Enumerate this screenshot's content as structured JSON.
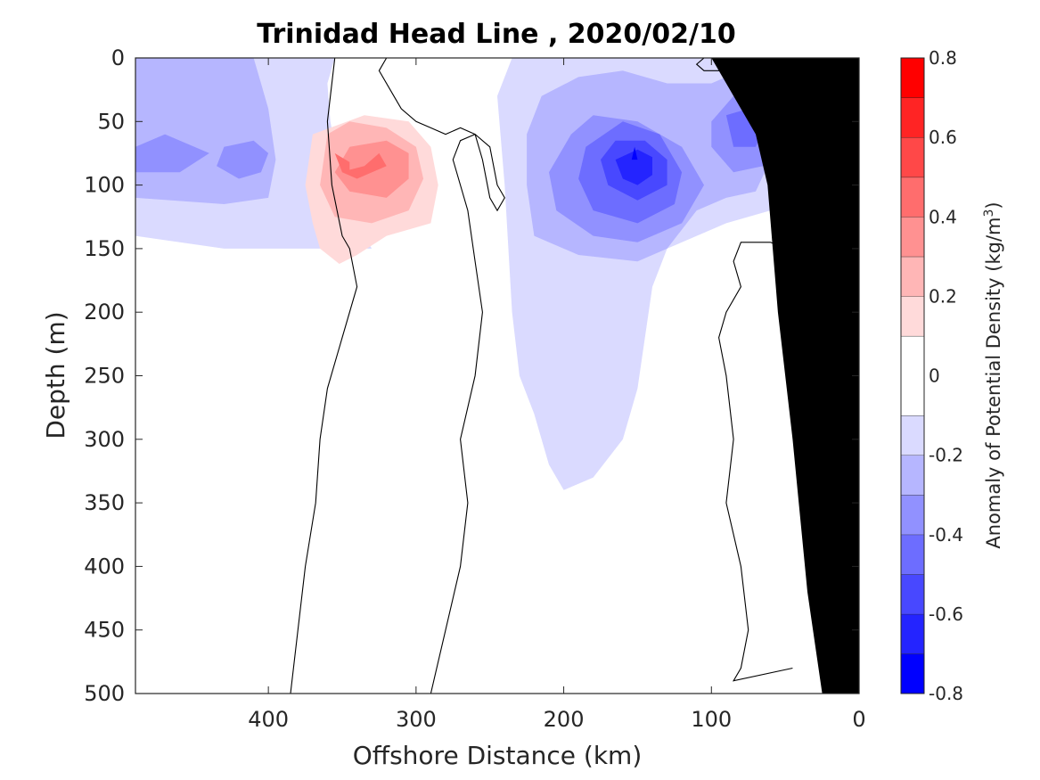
{
  "chart_data": {
    "type": "heatmap",
    "title": "Trinidad Head Line , 2020/02/10",
    "xlabel": "Offshore Distance (km)",
    "ylabel": "Depth (m)",
    "xlim": [
      490,
      0
    ],
    "ylim": [
      0,
      500
    ],
    "x_reversed": true,
    "y_reversed": true,
    "x_ticks": [
      400,
      300,
      200,
      100,
      0
    ],
    "y_ticks": [
      0,
      50,
      100,
      150,
      200,
      250,
      300,
      350,
      400,
      450,
      500
    ],
    "colorbar": {
      "label_pre": "Anomaly of Potential Density (kg/m",
      "label_sup": "3",
      "label_post": ")",
      "range": [
        -0.8,
        0.8
      ],
      "ticks": [
        0.8,
        0.6,
        0.4,
        0.2,
        0,
        -0.2,
        -0.4,
        -0.6,
        -0.8
      ],
      "levels": [
        -0.8,
        -0.7,
        -0.6,
        -0.5,
        -0.4,
        -0.3,
        -0.2,
        -0.1,
        0.1,
        0.2,
        0.3,
        0.4,
        0.5,
        0.6,
        0.7,
        0.8
      ],
      "colors": [
        "#0000ff",
        "#2424ff",
        "#4848ff",
        "#6d6dff",
        "#9191ff",
        "#b6b6ff",
        "#dadaff",
        "#ffffff",
        "#ffdada",
        "#ffb6b6",
        "#ff9191",
        "#ff6d6d",
        "#ff4848",
        "#ff2424",
        "#ff0000"
      ]
    },
    "bathymetry_color": "#000000",
    "regions": [
      {
        "sign": "negative",
        "level": -0.1,
        "points": [
          [
            490,
            0
          ],
          [
            355,
            0
          ],
          [
            360,
            20
          ],
          [
            358,
            50
          ],
          [
            350,
            100
          ],
          [
            340,
            130
          ],
          [
            330,
            150
          ],
          [
            430,
            150
          ],
          [
            490,
            140
          ]
        ]
      },
      {
        "sign": "negative",
        "level": -0.2,
        "points": [
          [
            490,
            0
          ],
          [
            410,
            0
          ],
          [
            405,
            20
          ],
          [
            400,
            40
          ],
          [
            395,
            80
          ],
          [
            400,
            110
          ],
          [
            430,
            115
          ],
          [
            490,
            110
          ]
        ]
      },
      {
        "sign": "negative",
        "level": -0.3,
        "points": [
          [
            490,
            70
          ],
          [
            470,
            60
          ],
          [
            440,
            75
          ],
          [
            460,
            90
          ],
          [
            490,
            90
          ]
        ]
      },
      {
        "sign": "negative",
        "level": -0.3,
        "points": [
          [
            430,
            70
          ],
          [
            410,
            65
          ],
          [
            400,
            75
          ],
          [
            405,
            90
          ],
          [
            420,
            95
          ],
          [
            435,
            85
          ]
        ]
      },
      {
        "sign": "negative",
        "level": -0.1,
        "points": [
          [
            235,
            0
          ],
          [
            245,
            30
          ],
          [
            240,
            100
          ],
          [
            235,
            200
          ],
          [
            230,
            250
          ],
          [
            220,
            280
          ],
          [
            210,
            320
          ],
          [
            200,
            340
          ],
          [
            180,
            330
          ],
          [
            160,
            300
          ],
          [
            150,
            260
          ],
          [
            145,
            220
          ],
          [
            140,
            180
          ],
          [
            130,
            150
          ],
          [
            90,
            130
          ],
          [
            60,
            120
          ],
          [
            50,
            100
          ],
          [
            50,
            50
          ],
          [
            55,
            0
          ]
        ]
      },
      {
        "sign": "negative",
        "level": -0.2,
        "points": [
          [
            215,
            30
          ],
          [
            225,
            60
          ],
          [
            225,
            100
          ],
          [
            220,
            140
          ],
          [
            190,
            155
          ],
          [
            150,
            160
          ],
          [
            130,
            150
          ],
          [
            110,
            120
          ],
          [
            90,
            110
          ],
          [
            70,
            105
          ],
          [
            60,
            80
          ],
          [
            58,
            40
          ],
          [
            65,
            15
          ],
          [
            80,
            10
          ],
          [
            100,
            20
          ],
          [
            130,
            20
          ],
          [
            160,
            10
          ],
          [
            190,
            15
          ]
        ]
      },
      {
        "sign": "negative",
        "level": -0.3,
        "points": [
          [
            195,
            60
          ],
          [
            210,
            90
          ],
          [
            205,
            120
          ],
          [
            180,
            140
          ],
          [
            150,
            145
          ],
          [
            120,
            130
          ],
          [
            105,
            100
          ],
          [
            120,
            70
          ],
          [
            150,
            50
          ],
          [
            180,
            45
          ]
        ]
      },
      {
        "sign": "negative",
        "level": -0.3,
        "points": [
          [
            100,
            50
          ],
          [
            85,
            30
          ],
          [
            70,
            35
          ],
          [
            60,
            60
          ],
          [
            65,
            85
          ],
          [
            85,
            90
          ],
          [
            100,
            70
          ]
        ]
      },
      {
        "sign": "negative",
        "level": -0.4,
        "points": [
          [
            185,
            70
          ],
          [
            190,
            95
          ],
          [
            180,
            120
          ],
          [
            150,
            130
          ],
          [
            125,
            115
          ],
          [
            120,
            90
          ],
          [
            135,
            60
          ],
          [
            160,
            50
          ]
        ]
      },
      {
        "sign": "negative",
        "level": -0.4,
        "points": [
          [
            90,
            45
          ],
          [
            75,
            40
          ],
          [
            65,
            55
          ],
          [
            70,
            70
          ],
          [
            85,
            70
          ]
        ]
      },
      {
        "sign": "negative",
        "level": -0.5,
        "points": [
          [
            175,
            80
          ],
          [
            170,
            100
          ],
          [
            150,
            112
          ],
          [
            130,
            100
          ],
          [
            130,
            80
          ],
          [
            145,
            65
          ],
          [
            165,
            65
          ]
        ]
      },
      {
        "sign": "negative",
        "level": -0.6,
        "points": [
          [
            165,
            80
          ],
          [
            160,
            95
          ],
          [
            150,
            100
          ],
          [
            140,
            92
          ],
          [
            140,
            78
          ],
          [
            150,
            72
          ]
        ]
      },
      {
        "sign": "negative",
        "level": -0.7,
        "points": [
          [
            152,
            70
          ],
          [
            150,
            80
          ],
          [
            154,
            80
          ]
        ]
      },
      {
        "sign": "positive",
        "level": 0.1,
        "points": [
          [
            370,
            60
          ],
          [
            375,
            100
          ],
          [
            370,
            130
          ],
          [
            365,
            150
          ],
          [
            352,
            162
          ],
          [
            340,
            155
          ],
          [
            320,
            140
          ],
          [
            290,
            130
          ],
          [
            285,
            100
          ],
          [
            290,
            70
          ],
          [
            305,
            50
          ],
          [
            335,
            45
          ]
        ]
      },
      {
        "sign": "positive",
        "level": 0.2,
        "points": [
          [
            360,
            60
          ],
          [
            365,
            100
          ],
          [
            355,
            125
          ],
          [
            330,
            130
          ],
          [
            305,
            120
          ],
          [
            295,
            95
          ],
          [
            300,
            70
          ],
          [
            320,
            55
          ],
          [
            345,
            50
          ]
        ]
      },
      {
        "sign": "positive",
        "level": 0.3,
        "points": [
          [
            345,
            70
          ],
          [
            355,
            90
          ],
          [
            345,
            105
          ],
          [
            320,
            110
          ],
          [
            305,
            95
          ],
          [
            305,
            75
          ],
          [
            320,
            65
          ]
        ]
      },
      {
        "sign": "positive",
        "level": 0.4,
        "points": [
          [
            355,
            75
          ],
          [
            345,
            82
          ],
          [
            345,
            88
          ],
          [
            335,
            85
          ],
          [
            325,
            75
          ],
          [
            320,
            85
          ],
          [
            340,
            95
          ],
          [
            350,
            90
          ]
        ]
      },
      {
        "sign": "positive",
        "level": 0.1,
        "points": [
          [
            42,
            0
          ],
          [
            38,
            100
          ],
          [
            35,
            200
          ],
          [
            32,
            300
          ],
          [
            30,
            400
          ],
          [
            28,
            460
          ],
          [
            24,
            460
          ],
          [
            24,
            300
          ],
          [
            22,
            200
          ],
          [
            20,
            100
          ],
          [
            20,
            0
          ]
        ]
      },
      {
        "sign": "positive",
        "level": 0.2,
        "points": [
          [
            38,
            0
          ],
          [
            35,
            100
          ],
          [
            32,
            150
          ],
          [
            26,
            180
          ],
          [
            22,
            180
          ],
          [
            21,
            100
          ],
          [
            20,
            0
          ]
        ]
      },
      {
        "sign": "positive",
        "level": 0.3,
        "points": [
          [
            35,
            0
          ],
          [
            32,
            60
          ],
          [
            28,
            120
          ],
          [
            24,
            150
          ],
          [
            22,
            120
          ],
          [
            21,
            0
          ]
        ]
      },
      {
        "sign": "positive",
        "level": 0.4,
        "points": [
          [
            30,
            0
          ],
          [
            28,
            40
          ],
          [
            24,
            60
          ],
          [
            22,
            30
          ],
          [
            21,
            0
          ]
        ]
      },
      {
        "sign": "positive",
        "level": 0.5,
        "points": [
          [
            22,
            0
          ],
          [
            24,
            20
          ],
          [
            21,
            30
          ],
          [
            20,
            0
          ]
        ]
      }
    ],
    "bathymetry": [
      [
        0,
        0
      ],
      [
        0,
        500
      ],
      [
        25,
        500
      ],
      [
        35,
        420
      ],
      [
        45,
        300
      ],
      [
        55,
        200
      ],
      [
        62,
        100
      ],
      [
        70,
        60
      ],
      [
        90,
        20
      ],
      [
        100,
        0
      ]
    ],
    "zero_contours": [
      [
        [
          355,
          0
        ],
        [
          360,
          50
        ],
        [
          357,
          100
        ],
        [
          350,
          140
        ],
        [
          345,
          150
        ],
        [
          340,
          180
        ],
        [
          350,
          220
        ],
        [
          360,
          260
        ],
        [
          365,
          300
        ],
        [
          368,
          350
        ],
        [
          375,
          400
        ],
        [
          380,
          450
        ],
        [
          385,
          500
        ]
      ],
      [
        [
          320,
          0
        ],
        [
          325,
          10
        ],
        [
          315,
          30
        ],
        [
          310,
          40
        ],
        [
          300,
          50
        ],
        [
          290,
          55
        ],
        [
          280,
          60
        ],
        [
          270,
          55
        ],
        [
          260,
          60
        ],
        [
          255,
          80
        ],
        [
          250,
          110
        ],
        [
          245,
          120
        ],
        [
          240,
          110
        ],
        [
          245,
          100
        ],
        [
          250,
          70
        ],
        [
          260,
          60
        ],
        [
          270,
          65
        ],
        [
          275,
          80
        ],
        [
          265,
          120
        ],
        [
          260,
          160
        ],
        [
          255,
          200
        ],
        [
          260,
          250
        ],
        [
          270,
          300
        ],
        [
          265,
          350
        ],
        [
          270,
          400
        ],
        [
          280,
          450
        ],
        [
          290,
          500
        ]
      ],
      [
        [
          105,
          0
        ],
        [
          110,
          5
        ],
        [
          105,
          10
        ],
        [
          95,
          10
        ],
        [
          90,
          0
        ]
      ],
      [
        [
          45,
          0
        ],
        [
          50,
          20
        ],
        [
          50,
          60
        ],
        [
          45,
          80
        ],
        [
          40,
          100
        ],
        [
          35,
          120
        ],
        [
          40,
          140
        ],
        [
          50,
          150
        ],
        [
          60,
          145
        ],
        [
          80,
          145
        ],
        [
          85,
          160
        ],
        [
          80,
          180
        ],
        [
          90,
          200
        ],
        [
          95,
          220
        ],
        [
          90,
          250
        ],
        [
          85,
          300
        ],
        [
          90,
          350
        ],
        [
          80,
          400
        ],
        [
          75,
          450
        ],
        [
          80,
          480
        ],
        [
          85,
          490
        ],
        [
          45,
          480
        ]
      ]
    ]
  }
}
